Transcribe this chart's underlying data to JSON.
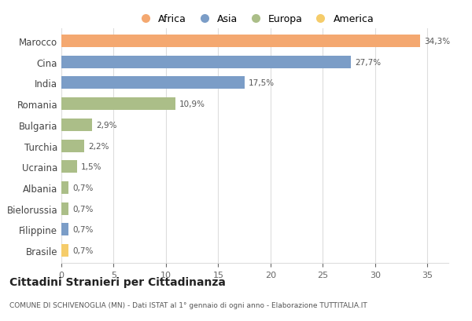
{
  "categories": [
    "Marocco",
    "Cina",
    "India",
    "Romania",
    "Bulgaria",
    "Turchia",
    "Ucraina",
    "Albania",
    "Bielorussia",
    "Filippine",
    "Brasile"
  ],
  "values": [
    34.3,
    27.7,
    17.5,
    10.9,
    2.9,
    2.2,
    1.5,
    0.7,
    0.7,
    0.7,
    0.7
  ],
  "labels": [
    "34,3%",
    "27,7%",
    "17,5%",
    "10,9%",
    "2,9%",
    "2,2%",
    "1,5%",
    "0,7%",
    "0,7%",
    "0,7%",
    "0,7%"
  ],
  "colors": [
    "#F4A870",
    "#7B9DC7",
    "#7B9DC7",
    "#ABBE88",
    "#ABBE88",
    "#ABBE88",
    "#ABBE88",
    "#ABBE88",
    "#ABBE88",
    "#7B9DC7",
    "#F5CC6A"
  ],
  "legend_labels": [
    "Africa",
    "Asia",
    "Europa",
    "America"
  ],
  "legend_colors": [
    "#F4A870",
    "#7B9DC7",
    "#ABBE88",
    "#F5CC6A"
  ],
  "title": "Cittadini Stranieri per Cittadinanza",
  "subtitle": "COMUNE DI SCHIVENOGLIA (MN) - Dati ISTAT al 1° gennaio di ogni anno - Elaborazione TUTTITALIA.IT",
  "xlim": [
    0,
    37
  ],
  "xticks": [
    0,
    5,
    10,
    15,
    20,
    25,
    30,
    35
  ],
  "background_color": "#ffffff",
  "grid_color": "#dddddd"
}
